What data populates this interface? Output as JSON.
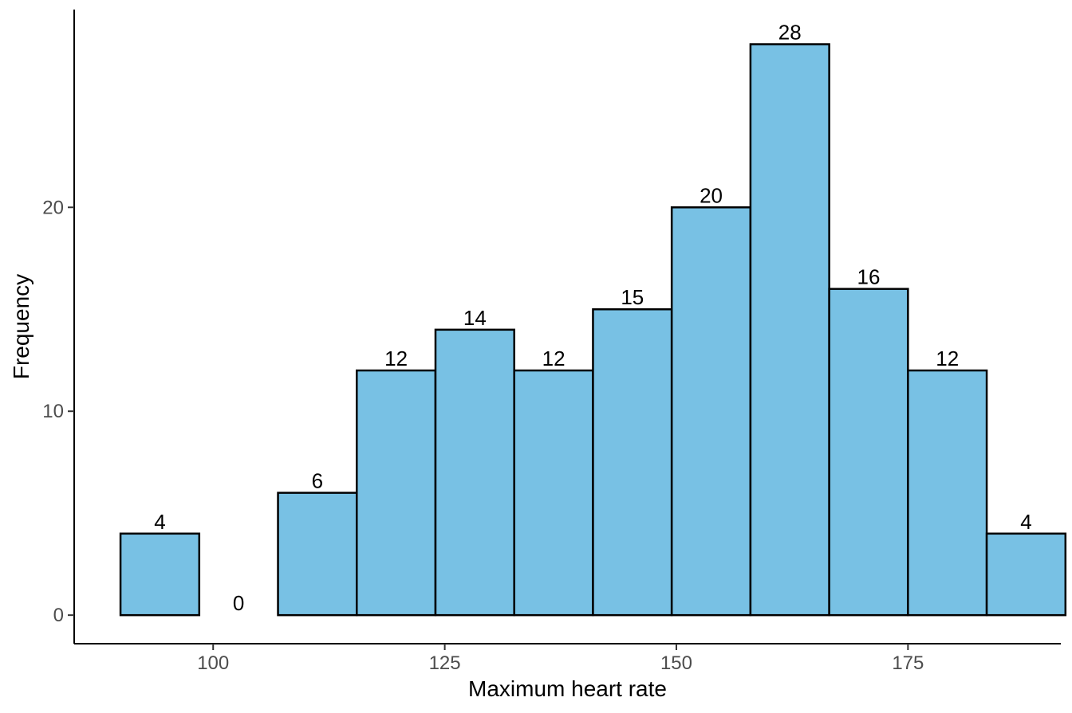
{
  "chart_data": {
    "type": "bar",
    "subtype": "histogram",
    "xlabel": "Maximum heart rate",
    "ylabel": "Frequency",
    "bins": [
      {
        "start": 90.0,
        "end": 98.5,
        "count": 4
      },
      {
        "start": 98.5,
        "end": 107.0,
        "count": 0
      },
      {
        "start": 107.0,
        "end": 115.5,
        "count": 6
      },
      {
        "start": 115.5,
        "end": 124.0,
        "count": 12
      },
      {
        "start": 124.0,
        "end": 132.5,
        "count": 14
      },
      {
        "start": 132.5,
        "end": 141.0,
        "count": 12
      },
      {
        "start": 141.0,
        "end": 149.5,
        "count": 15
      },
      {
        "start": 149.5,
        "end": 158.0,
        "count": 20
      },
      {
        "start": 158.0,
        "end": 166.5,
        "count": 28
      },
      {
        "start": 166.5,
        "end": 175.0,
        "count": 16
      },
      {
        "start": 175.0,
        "end": 183.5,
        "count": 12
      },
      {
        "start": 183.5,
        "end": 192.0,
        "count": 4
      }
    ],
    "xlim": [
      85,
      191.5
    ],
    "ylim": [
      -1.4,
      29.7
    ],
    "x_ticks": [
      100,
      125,
      150,
      175
    ],
    "y_ticks": [
      0,
      10,
      20
    ],
    "grid": false,
    "legend": "none",
    "colors": {
      "bar_fill": "#78c1e4",
      "bar_stroke": "#000000",
      "axis": "#000000"
    }
  }
}
